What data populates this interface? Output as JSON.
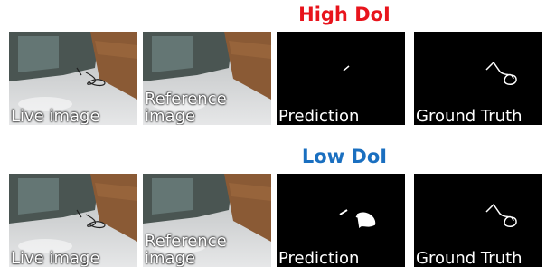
{
  "rows": [
    {
      "title": "High DoI",
      "panels": [
        "Live image",
        "Reference image",
        "Prediction",
        "Ground Truth"
      ]
    },
    {
      "title": "Low DoI",
      "panels": [
        "Live image",
        "Reference image",
        "Prediction",
        "Ground Truth"
      ]
    }
  ]
}
